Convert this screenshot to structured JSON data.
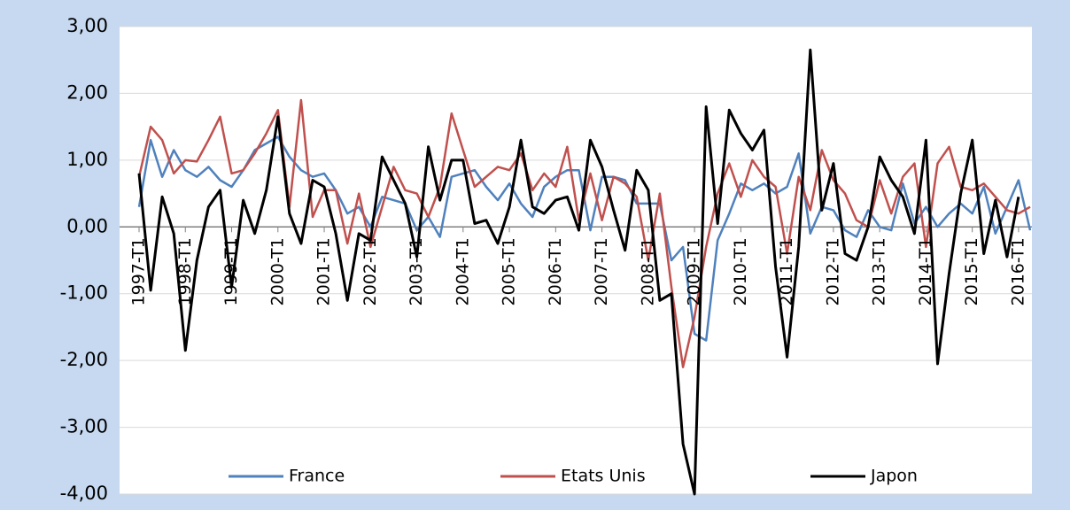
{
  "chart_data": {
    "type": "line",
    "categories": [
      "1997-T1",
      null,
      null,
      null,
      "1998-T1",
      null,
      null,
      null,
      "1999-T1",
      null,
      null,
      null,
      "2000-T1",
      null,
      null,
      null,
      "2001-T1",
      null,
      null,
      null,
      "2002-T1",
      null,
      null,
      null,
      "2003-T1",
      null,
      null,
      null,
      "2004-T1",
      null,
      null,
      null,
      "2005-T1",
      null,
      null,
      null,
      "2006-T1",
      null,
      null,
      null,
      "2007-T1",
      null,
      null,
      null,
      "2008-T1",
      null,
      null,
      null,
      "2009-T1",
      null,
      null,
      null,
      "2010-T1",
      null,
      null,
      null,
      "2011-T1",
      null,
      null,
      null,
      "2012-T1",
      null,
      null,
      null,
      "2013-T1",
      null,
      null,
      null,
      "2014-T1",
      null,
      null,
      null,
      "2015-T1",
      null,
      null,
      null,
      "2016-T1",
      null
    ],
    "series": [
      {
        "name": "France",
        "color": "#4f81bd",
        "values": [
          0.3,
          1.3,
          0.75,
          1.15,
          0.85,
          0.75,
          0.9,
          0.7,
          0.6,
          0.85,
          1.15,
          1.25,
          1.35,
          1.05,
          0.85,
          0.75,
          0.8,
          0.55,
          0.2,
          0.3,
          0.0,
          0.45,
          0.4,
          0.35,
          -0.05,
          0.15,
          -0.15,
          0.75,
          0.8,
          0.85,
          0.6,
          0.4,
          0.65,
          0.35,
          0.15,
          0.6,
          0.75,
          0.85,
          0.85,
          -0.05,
          0.75,
          0.75,
          0.7,
          0.35,
          0.35,
          0.35,
          -0.5,
          -0.3,
          -1.6,
          -1.7,
          -0.2,
          0.2,
          0.65,
          0.55,
          0.65,
          0.5,
          0.6,
          1.1,
          -0.1,
          0.3,
          0.25,
          -0.05,
          -0.15,
          0.25,
          0.0,
          -0.05,
          0.65,
          0.05,
          0.3,
          0.0,
          0.2,
          0.35,
          0.2,
          0.6,
          -0.1,
          0.3,
          0.7,
          -0.05
        ]
      },
      {
        "name": "Etats Unis",
        "color": "#c0504d",
        "values": [
          0.75,
          1.5,
          1.3,
          0.8,
          1.0,
          0.98,
          1.3,
          1.65,
          0.8,
          0.85,
          1.1,
          1.4,
          1.75,
          0.3,
          1.9,
          0.15,
          0.55,
          0.55,
          -0.25,
          0.5,
          -0.3,
          0.3,
          0.9,
          0.55,
          0.5,
          0.15,
          0.6,
          1.7,
          1.15,
          0.6,
          0.75,
          0.9,
          0.85,
          1.1,
          0.55,
          0.8,
          0.6,
          1.2,
          0.1,
          0.8,
          0.1,
          0.75,
          0.65,
          0.45,
          -0.5,
          0.5,
          -0.9,
          -2.1,
          -1.35,
          -0.3,
          0.5,
          0.95,
          0.45,
          1.0,
          0.75,
          0.6,
          -0.4,
          0.75,
          0.25,
          1.15,
          0.7,
          0.5,
          0.1,
          0.0,
          0.7,
          0.2,
          0.75,
          0.95,
          -0.3,
          0.95,
          1.2,
          0.6,
          0.55,
          0.65,
          0.45,
          0.25,
          0.2,
          0.3
        ]
      },
      {
        "name": "Japon",
        "color": "#000000",
        "values": [
          0.8,
          -0.95,
          0.45,
          -0.1,
          -1.85,
          -0.5,
          0.3,
          0.55,
          -0.9,
          0.4,
          -0.1,
          0.55,
          1.65,
          0.2,
          -0.25,
          0.7,
          0.6,
          -0.1,
          -1.1,
          -0.1,
          -0.2,
          1.05,
          0.7,
          0.35,
          -0.45,
          1.2,
          0.4,
          1.0,
          1.0,
          0.05,
          0.1,
          -0.25,
          0.3,
          1.3,
          0.3,
          0.2,
          0.4,
          0.45,
          -0.05,
          1.3,
          0.9,
          0.25,
          -0.35,
          0.85,
          0.55,
          -1.1,
          -1.0,
          -3.25,
          -4.0,
          1.8,
          0.05,
          1.75,
          1.4,
          1.15,
          1.45,
          -0.6,
          -1.95,
          -0.3,
          2.65,
          0.25,
          0.95,
          -0.4,
          -0.5,
          0.0,
          1.05,
          0.7,
          0.45,
          -0.1,
          1.3,
          -2.05,
          -0.7,
          0.5,
          1.3,
          -0.4,
          0.4,
          -0.45,
          0.45,
          null
        ]
      }
    ],
    "ylim": [
      -4,
      3
    ],
    "yticks": [
      {
        "value": -4,
        "label": "-4,00"
      },
      {
        "value": -3,
        "label": "-3,00"
      },
      {
        "value": -2,
        "label": "-2,00"
      },
      {
        "value": -1,
        "label": "-1,00"
      },
      {
        "value": 0,
        "label": "0,00"
      },
      {
        "value": 1,
        "label": "1,00"
      },
      {
        "value": 2,
        "label": "2,00"
      },
      {
        "value": 3,
        "label": "3,00"
      }
    ],
    "grid": true,
    "legend": "bottom"
  }
}
